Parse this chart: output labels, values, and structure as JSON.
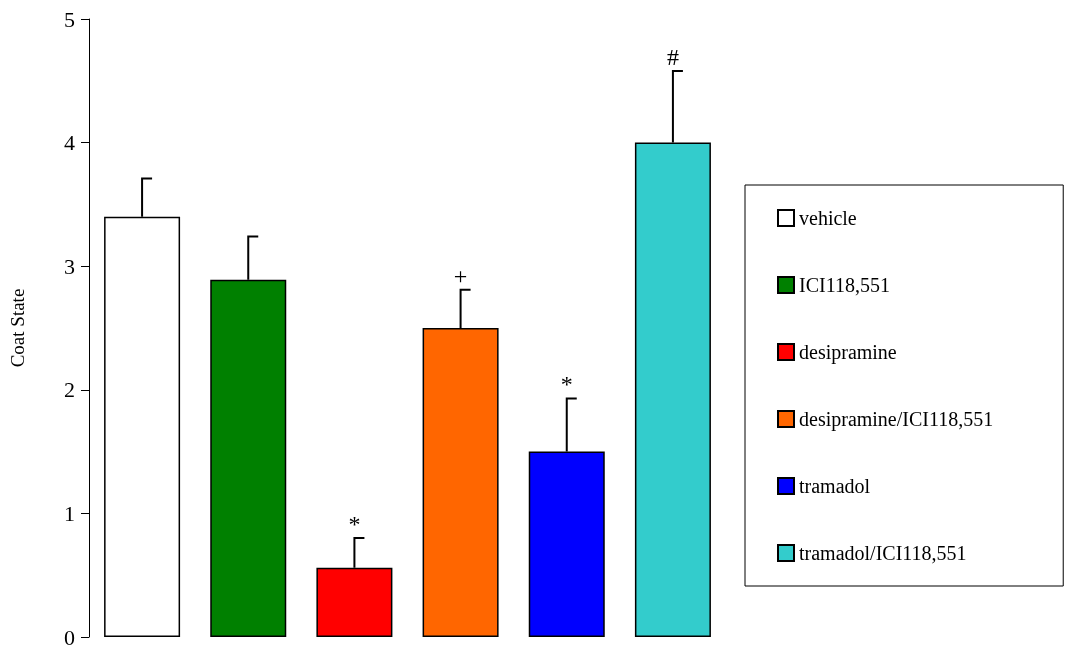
{
  "chart_data": {
    "type": "bar",
    "ylabel": "Coat State",
    "categories": [
      null,
      null,
      null,
      null,
      null,
      null
    ],
    "series": [
      {
        "name": "vehicle",
        "color": "#ffffff",
        "values": [
          3.4,
          null,
          null,
          null,
          null,
          null
        ],
        "errors": [
          0.31,
          null,
          null,
          null,
          null,
          null
        ]
      },
      {
        "name": "ICI118,551",
        "color": "#008000",
        "values": [
          null,
          2.89,
          null,
          null,
          null,
          null
        ],
        "errors": [
          null,
          0.35,
          null,
          null,
          null,
          null
        ]
      },
      {
        "name": "desipramine",
        "color": "#ff0000",
        "values": [
          null,
          null,
          0.56,
          null,
          null,
          null
        ],
        "errors": [
          null,
          null,
          0.24,
          null,
          null,
          null
        ],
        "value_labels": [
          null,
          null,
          "*",
          null,
          null,
          null
        ]
      },
      {
        "name": "desipramine/ICI118,551",
        "color": "#ff6600",
        "values": [
          null,
          null,
          null,
          2.5,
          null,
          null
        ],
        "errors": [
          null,
          null,
          null,
          0.31,
          null,
          null
        ],
        "value_labels": [
          null,
          null,
          null,
          "+",
          null,
          null
        ]
      },
      {
        "name": "tramadol",
        "color": "#0000ff",
        "values": [
          null,
          null,
          null,
          null,
          1.5,
          null
        ],
        "errors": [
          null,
          null,
          null,
          null,
          0.43,
          null
        ],
        "value_labels": [
          null,
          null,
          null,
          null,
          "*",
          null
        ]
      },
      {
        "name": "tramadol/ICI118,551",
        "color": "#33cccc",
        "values": [
          null,
          null,
          null,
          null,
          null,
          4.0
        ],
        "errors": [
          null,
          null,
          null,
          null,
          null,
          0.58
        ],
        "value_labels": [
          null,
          null,
          null,
          null,
          null,
          "#"
        ]
      }
    ],
    "stacked": true,
    "ylim": [
      0,
      5
    ],
    "yticks": [
      0,
      1,
      2,
      3,
      4,
      5
    ],
    "grid": false,
    "legend": "right"
  }
}
